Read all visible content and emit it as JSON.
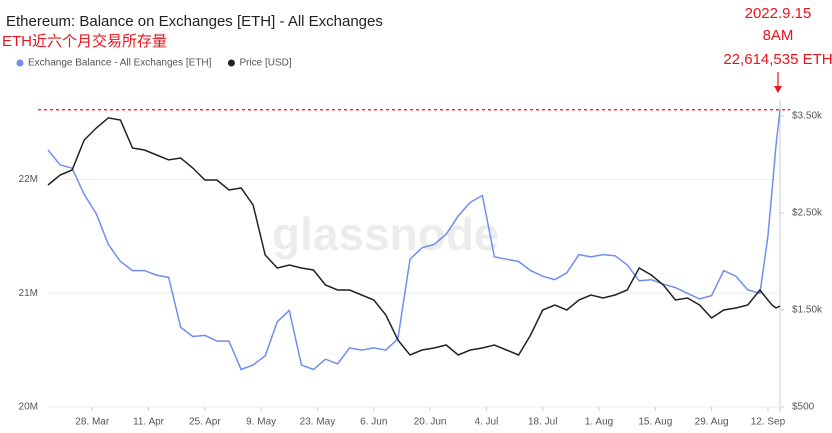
{
  "chart_data": {
    "type": "line",
    "title": "Ethereum: Balance on Exchanges [ETH] - All Exchanges",
    "subtitle": "ETH近六个月交易所存量",
    "annotation": [
      "2022.9.15",
      "8AM",
      "22,614,535 ETH"
    ],
    "reference_line": 22614535,
    "reference_color": "#e8141c",
    "watermark": "glassnode",
    "x": [
      76,
      79,
      82,
      85,
      88,
      91,
      94,
      97,
      100,
      103,
      106,
      109,
      112,
      115,
      118,
      121,
      124,
      127,
      130,
      133,
      136,
      139,
      142,
      145,
      148,
      151,
      154,
      157,
      160,
      163,
      166,
      169,
      172,
      175,
      178,
      181,
      184,
      187,
      190,
      193,
      196,
      199,
      202,
      205,
      208,
      211,
      214,
      217,
      220,
      223,
      226,
      229,
      232,
      235,
      238,
      241,
      244,
      247,
      250,
      253,
      255,
      256,
      257,
      258
    ],
    "xlim": [
      76,
      258
    ],
    "xticks": [
      {
        "value": 87,
        "label": "28. Mar"
      },
      {
        "value": 101,
        "label": "11. Apr"
      },
      {
        "value": 115,
        "label": "25. Apr"
      },
      {
        "value": 129,
        "label": "9. May"
      },
      {
        "value": 143,
        "label": "23. May"
      },
      {
        "value": 157,
        "label": "6. Jun"
      },
      {
        "value": 171,
        "label": "20. Jun"
      },
      {
        "value": 185,
        "label": "4. Jul"
      },
      {
        "value": 199,
        "label": "18. Jul"
      },
      {
        "value": 213,
        "label": "1. Aug"
      },
      {
        "value": 227,
        "label": "15. Aug"
      },
      {
        "value": 241,
        "label": "29. Aug"
      },
      {
        "value": 255,
        "label": "12. Sep"
      }
    ],
    "ylim": [
      20000000,
      22700000
    ],
    "yticks": [
      {
        "value": 20000000,
        "label": "20M"
      },
      {
        "value": 21000000,
        "label": "21M"
      },
      {
        "value": 22000000,
        "label": "22M"
      }
    ],
    "y2lim": [
      500,
      3665
    ],
    "y2ticks": [
      {
        "value": 500,
        "label": "$500"
      },
      {
        "value": 1500,
        "label": "$1.50k"
      },
      {
        "value": 2500,
        "label": "$2.50k"
      },
      {
        "value": 3500,
        "label": "$3.50k"
      }
    ],
    "grid": true,
    "series": [
      {
        "name": "Exchange Balance - All Exchanges [ETH]",
        "color": "#6f8ef0",
        "values": [
          22260000,
          22130000,
          22100000,
          21870000,
          21700000,
          21430000,
          21280000,
          21200000,
          21200000,
          21160000,
          21140000,
          20700000,
          20620000,
          20630000,
          20580000,
          20580000,
          20330000,
          20370000,
          20450000,
          20750000,
          20850000,
          20370000,
          20330000,
          20420000,
          20380000,
          20520000,
          20500000,
          20520000,
          20500000,
          20600000,
          21300000,
          21400000,
          21430000,
          21520000,
          21680000,
          21800000,
          21860000,
          21320000,
          21300000,
          21280000,
          21200000,
          21150000,
          21120000,
          21180000,
          21340000,
          21320000,
          21340000,
          21330000,
          21250000,
          21110000,
          21120000,
          21080000,
          21050000,
          21000000,
          20950000,
          20980000,
          21200000,
          21150000,
          21030000,
          21000000,
          21500000,
          21900000,
          22300000,
          22614535
        ]
      },
      {
        "name": "Price [USD]",
        "color": "#222222",
        "axis": "y2",
        "values": [
          2789,
          2892,
          2943,
          3253,
          3376,
          3480,
          3459,
          3170,
          3150,
          3098,
          3047,
          3067,
          2964,
          2840,
          2840,
          2737,
          2758,
          2583,
          2067,
          1933,
          1964,
          1933,
          1912,
          1758,
          1706,
          1706,
          1655,
          1603,
          1449,
          1191,
          1036,
          1088,
          1108,
          1139,
          1036,
          1088,
          1108,
          1139,
          1088,
          1036,
          1242,
          1500,
          1552,
          1500,
          1603,
          1655,
          1624,
          1655,
          1706,
          1933,
          1861,
          1758,
          1603,
          1624,
          1552,
          1418,
          1500,
          1521,
          1552,
          1706,
          1603,
          1552,
          1521,
          1541
        ]
      }
    ]
  }
}
